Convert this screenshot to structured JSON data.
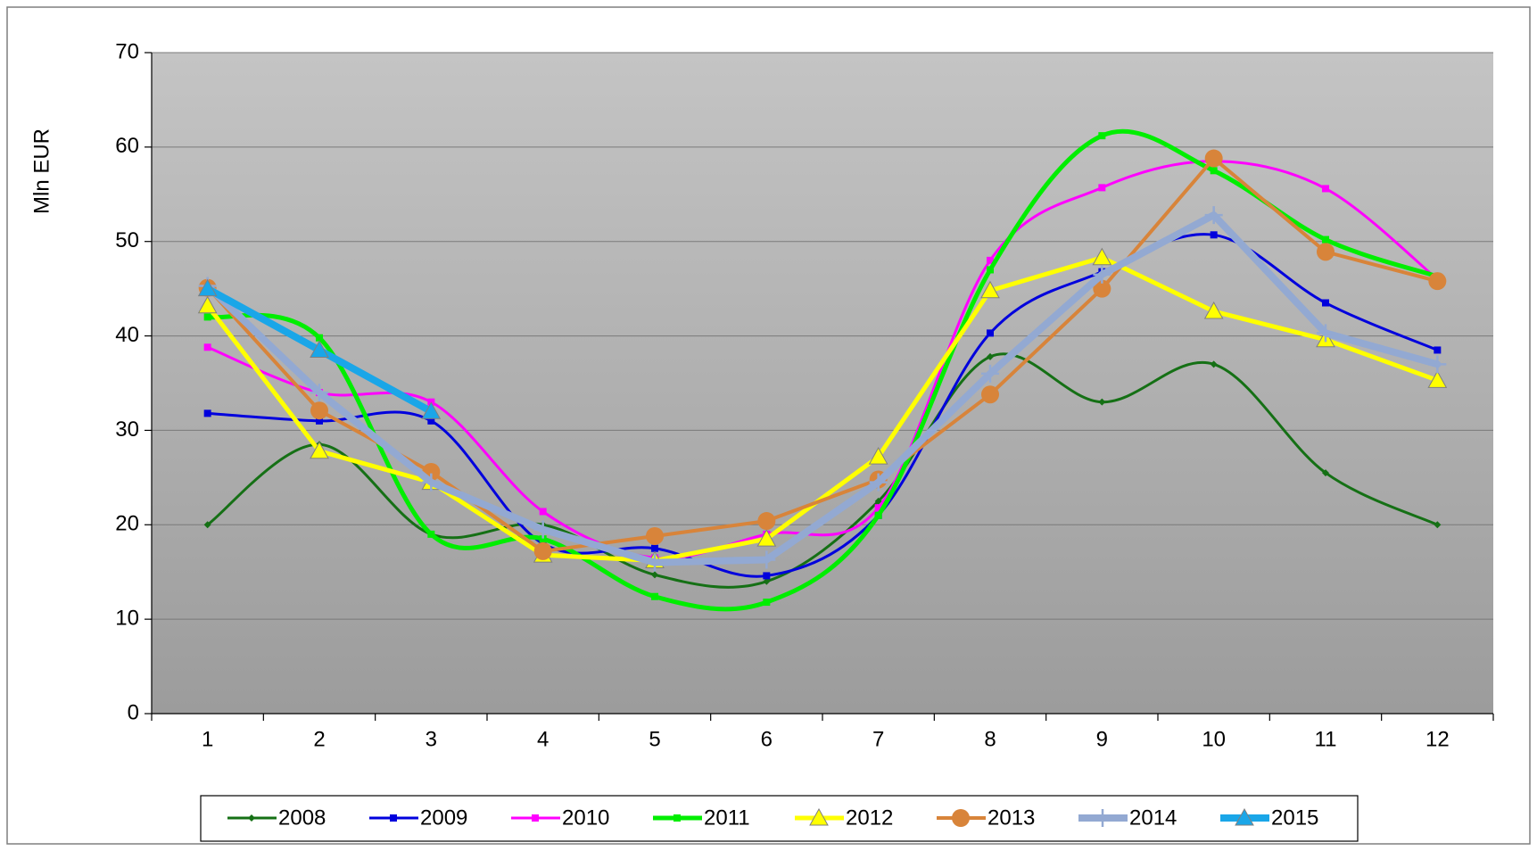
{
  "chart_data": {
    "type": "line",
    "y_label": "Mln EUR",
    "categories": [
      "1",
      "2",
      "3",
      "4",
      "5",
      "6",
      "7",
      "8",
      "9",
      "10",
      "11",
      "12"
    ],
    "ylim": [
      0,
      70
    ],
    "yticks": [
      0,
      10,
      20,
      30,
      40,
      50,
      60,
      70
    ],
    "grid": true,
    "legend": "bottom",
    "series": [
      {
        "name": "2008",
        "color": "#157015",
        "width": 3,
        "smooth": true,
        "marker": "diamond",
        "values": [
          20,
          28.5,
          19,
          20,
          14.7,
          14,
          22.5,
          37.8,
          33,
          37,
          25.5,
          20
        ]
      },
      {
        "name": "2009",
        "color": "#0000dd",
        "width": 3,
        "smooth": true,
        "marker": "square",
        "values": [
          31.8,
          31,
          31,
          18,
          17.5,
          14.6,
          21,
          40.3,
          46.8,
          50.7,
          43.5,
          38.5
        ]
      },
      {
        "name": "2010",
        "color": "#ff00ff",
        "width": 3,
        "smooth": true,
        "marker": "square",
        "values": [
          38.8,
          34,
          33,
          21.4,
          16.5,
          19,
          21.8,
          48,
          55.7,
          58.5,
          55.6,
          46
        ]
      },
      {
        "name": "2011",
        "color": "#00ee00",
        "width": 5,
        "smooth": true,
        "marker": "square",
        "values": [
          42,
          39.8,
          19,
          18.5,
          12.4,
          11.8,
          21,
          47,
          61.2,
          57.5,
          50.2,
          46.3
        ]
      },
      {
        "name": "2012",
        "color": "#ffff00",
        "width": 5,
        "smooth": false,
        "marker": "triangle",
        "values": [
          43.2,
          27.8,
          24.5,
          16.8,
          16.2,
          18.5,
          27.2,
          44.8,
          48.3,
          42.6,
          39.6,
          35.3
        ]
      },
      {
        "name": "2013",
        "color": "#d8843a",
        "width": 4,
        "smooth": false,
        "marker": "circle",
        "values": [
          45.1,
          32.1,
          25.6,
          17.2,
          18.8,
          20.4,
          24.8,
          33.8,
          45,
          58.8,
          48.9,
          45.8
        ]
      },
      {
        "name": "2014",
        "color": "#93a9d2",
        "width": 8,
        "smooth": false,
        "marker": "plus",
        "values": [
          45.3,
          34,
          24.5,
          19.5,
          16,
          16.3,
          24.5,
          36,
          46.5,
          52.8,
          40.3,
          37
        ]
      },
      {
        "name": "2015",
        "color": "#1aa6e8",
        "width": 8,
        "smooth": false,
        "marker": "triangle",
        "values": [
          45,
          38.5,
          32,
          null,
          null,
          null,
          null,
          null,
          null,
          null,
          null,
          null
        ]
      }
    ]
  }
}
